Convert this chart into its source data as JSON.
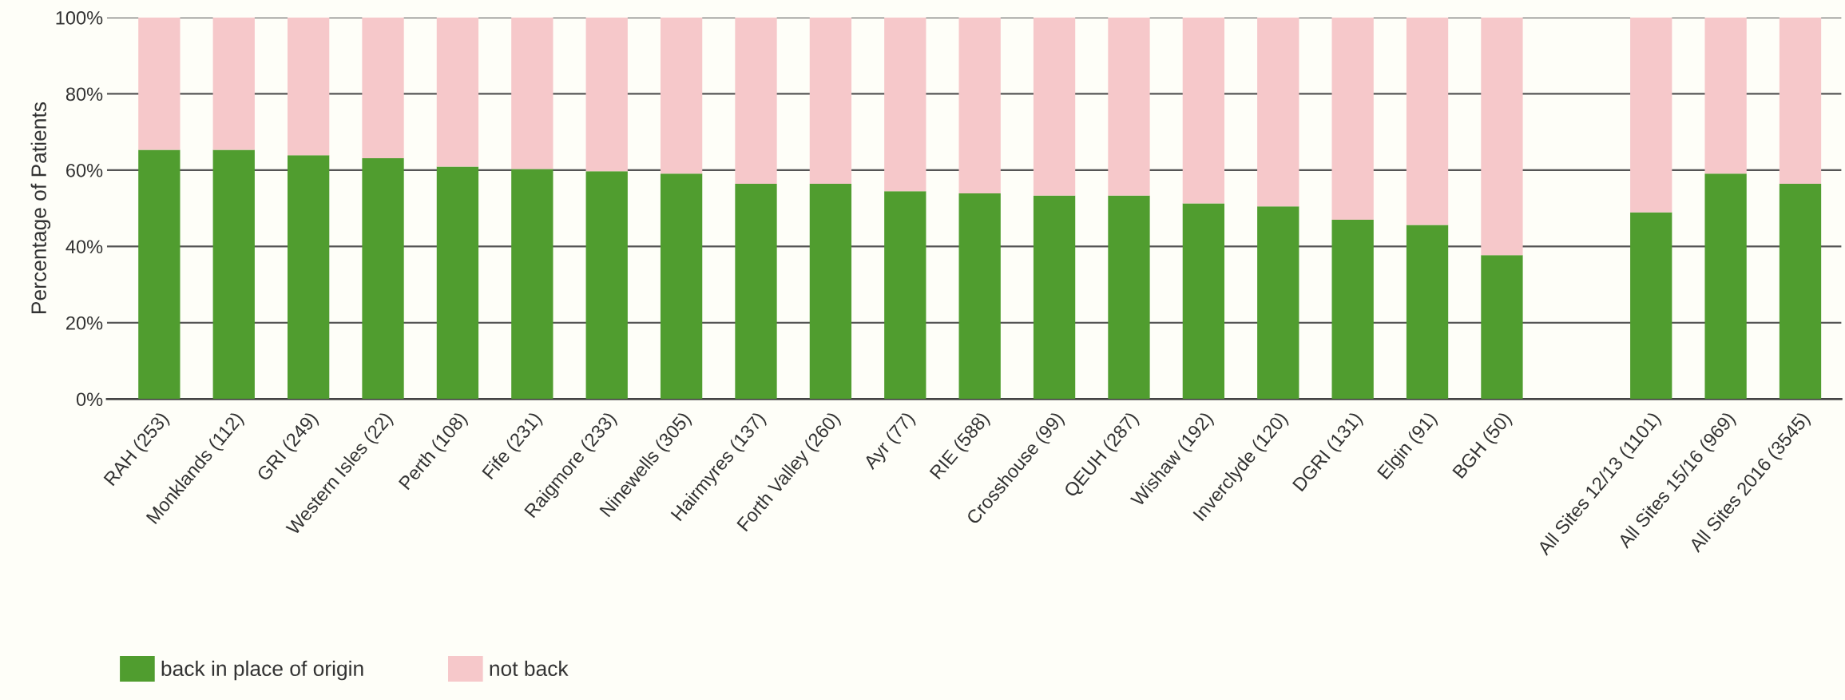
{
  "chart_data": {
    "type": "bar",
    "stacked": true,
    "ylabel": "Percentage of Patients",
    "categories": [
      "RAH (253)",
      "Monklands (112)",
      "GRI (249)",
      "Western Isles (22)",
      "Perth (108)",
      "Fife (231)",
      "Raigmore (233)",
      "Ninewells (305)",
      "Hairmyres (137)",
      "Forth Valley (260)",
      "Ayr (77)",
      "RIE (588)",
      "Crosshouse (99)",
      "QEUH (287)",
      "Wishaw (192)",
      "Inverclyde (120)",
      "DGRI (131)",
      "Elgin (91)",
      "BGH (50)",
      null,
      "All Sites 12/13 (1101)",
      "All Sites 15/16 (969)",
      "All Sites 2016 (3545)"
    ],
    "series": [
      {
        "name": "back in place of origin",
        "color": "#509d2f",
        "values": [
          65.3,
          65.3,
          63.9,
          63.1,
          60.9,
          60.3,
          59.7,
          59.1,
          56.4,
          56.4,
          54.5,
          53.9,
          53.3,
          53.3,
          51.3,
          50.5,
          47.0,
          45.6,
          37.7,
          null,
          48.9,
          59.1,
          56.4
        ]
      },
      {
        "name": "not back",
        "color": "#f6c8ca",
        "values": [
          34.7,
          34.7,
          36.1,
          36.9,
          39.1,
          39.7,
          40.3,
          40.9,
          43.6,
          43.6,
          45.5,
          46.1,
          46.7,
          46.7,
          48.7,
          49.5,
          53.0,
          54.4,
          62.3,
          null,
          51.1,
          40.9,
          43.6
        ]
      }
    ],
    "ylim": [
      0,
      100
    ],
    "yticks": [
      {
        "value": 0,
        "label": "0%"
      },
      {
        "value": 20,
        "label": "20%"
      },
      {
        "value": 40,
        "label": "40%"
      },
      {
        "value": 60,
        "label": "60%"
      },
      {
        "value": 80,
        "label": "80%"
      },
      {
        "value": 100,
        "label": "100%"
      }
    ],
    "grid": "y",
    "legend": "bottom left"
  }
}
